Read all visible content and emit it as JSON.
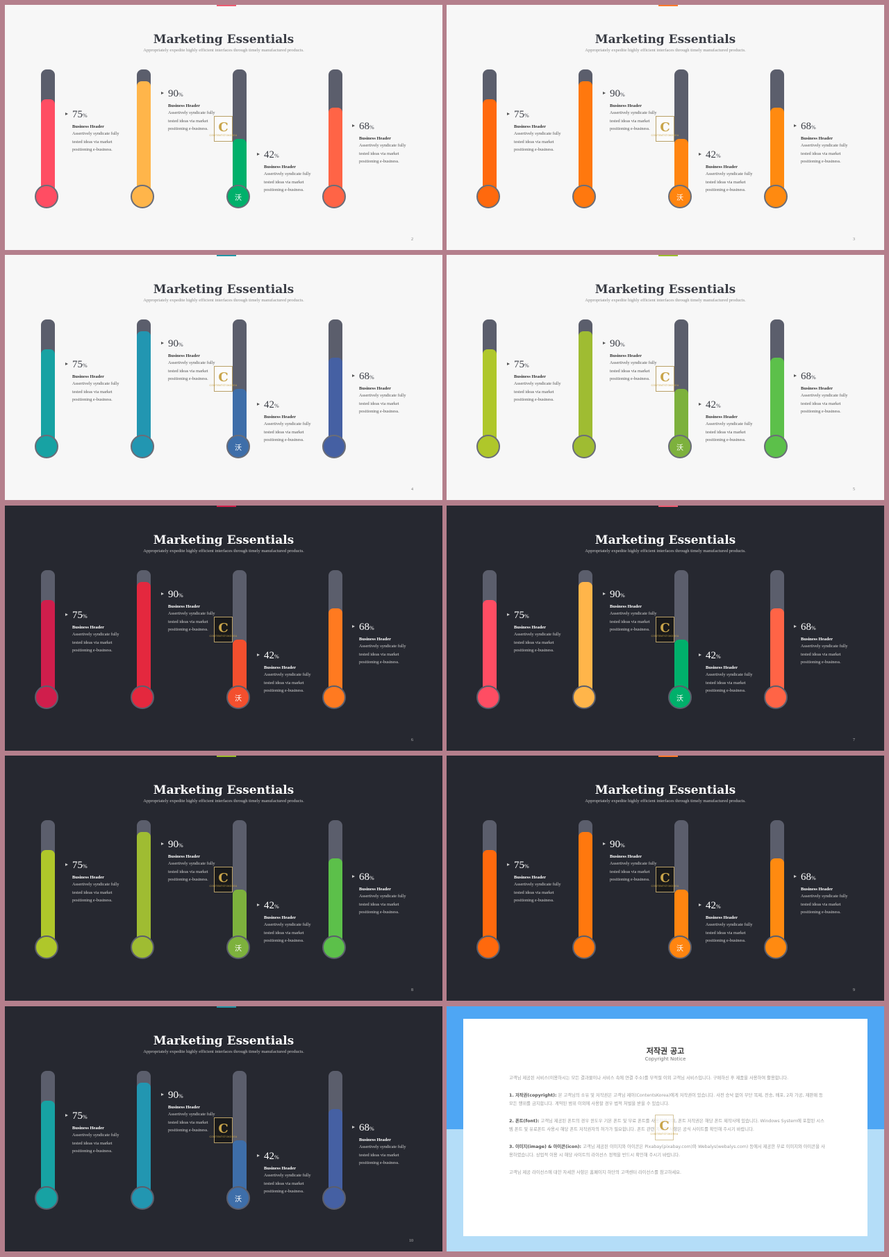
{
  "slides": [
    {
      "page": "2",
      "theme": "light",
      "accent": "#ee5a6f",
      "colors": [
        "#ff4d63",
        "#ffb54a",
        "#00b06b",
        "#ff6446"
      ]
    },
    {
      "page": "3",
      "theme": "light",
      "accent": "#ff7a2a",
      "colors": [
        "#ff690d",
        "#ff780e",
        "#ff8510",
        "#ff8a10"
      ]
    },
    {
      "page": "4",
      "theme": "light",
      "accent": "#2196a6",
      "colors": [
        "#17a2a3",
        "#2296b1",
        "#3e6ea9",
        "#4560a3"
      ]
    },
    {
      "page": "5",
      "theme": "light",
      "accent": "#9bbd2b",
      "colors": [
        "#afc72a",
        "#9fbc32",
        "#7db13d",
        "#5cc04a"
      ]
    },
    {
      "page": "6",
      "theme": "dark",
      "accent": "#d0204a",
      "colors": [
        "#d01e4c",
        "#e4283e",
        "#f34f2e",
        "#ff7a20"
      ]
    },
    {
      "page": "7",
      "theme": "dark",
      "accent": "#ee5a6f",
      "colors": [
        "#ff4d63",
        "#ffb54a",
        "#00b06b",
        "#ff6446"
      ]
    },
    {
      "page": "8",
      "theme": "dark",
      "accent": "#9bbd2b",
      "colors": [
        "#afc72a",
        "#9fbc32",
        "#7db13d",
        "#5cc04a"
      ]
    },
    {
      "page": "9",
      "theme": "dark",
      "accent": "#ff7a2a",
      "colors": [
        "#ff690d",
        "#ff780e",
        "#ff8510",
        "#ff8a10"
      ]
    },
    {
      "page": "10",
      "theme": "dark",
      "accent": "#2196a6",
      "colors": [
        "#17a2a3",
        "#2296b1",
        "#3e6ea9",
        "#4560a3"
      ]
    }
  ],
  "slide_text": {
    "title": "Marketing Essentials",
    "subtitle": "Appropriately expedite highly efficient interfaces through timely manufactured products.",
    "bulb_glyph": "沃",
    "items": [
      {
        "value": 75,
        "num": "75",
        "unit": "%",
        "header": "Business Header",
        "desc": [
          "Assertively syndicate fully",
          "tested ideas via market",
          "positioning e-business."
        ]
      },
      {
        "value": 90,
        "num": "90",
        "unit": "%",
        "header": "Business Header",
        "desc": [
          "Assertively syndicate fully",
          "tested ideas via market",
          "positioning e-business."
        ]
      },
      {
        "value": 42,
        "num": "42",
        "unit": "%",
        "header": "Business Header",
        "desc": [
          "Assertively syndicate fully",
          "tested ideas via market",
          "positioning e-business."
        ]
      },
      {
        "value": 68,
        "num": "68",
        "unit": "%",
        "header": "Business Header",
        "desc": [
          "Assertively syndicate fully",
          "tested ideas via market",
          "positioning e-business."
        ]
      }
    ]
  },
  "watermark": {
    "letter": "C",
    "text": "CONTENTSTOKOREA"
  },
  "copyright": {
    "title": "저작권 공고",
    "subtitle": "Copyright Notice",
    "intro": "고객님 제공된 서비스(이용하시는 모든 결과물이나 서비스 속에 연결 주소)를 부적절 이외 고객님 서비스입니다. 구매하신 후 제품을 사용하여 활용합니다.",
    "sections": [
      {
        "head": "1. 저작권(copyright):",
        "text": "본 고객님의 소유 및 저작권은 고객님 제이(ContentsKorea)에게 저작권이 있습니다. 사전 승낙 없이 무단 복제, 전송, 배포, 2차 가공, 재판매 등 모든 행위를 금지합니다. 계약된 범위 이외에 사용할 경우 법적 처벌을 받을 수 있습니다."
      },
      {
        "head": "2. 폰트(font):",
        "text": "고객님 제공된 폰트의 경우 윈도우 기본 폰트 및 무료 폰트를 사용하였으며, 폰트 저작권은 해당 폰트 제작사에 있습니다. Windows System에 포함된 시스템 폰트 및 유료폰트 사용시 해당 폰트 저작권자의 허가가 필요합니다. 폰트 관련 자세한 사항은 공식 사이트를 확인해 주시기 바랍니다."
      },
      {
        "head": "3. 이미지(image) & 아이콘(icon):",
        "text": "고객님 제공된 이미지와 아이콘은 Pixabay(pixabay.com)와 Webalys(webalys.com) 등에서 제공한 무료 이미지와 아이콘을 사용하였습니다. 상업적 이용 시 해당 사이트의 라이선스 정책을 반드시 확인해 주시기 바랍니다."
      }
    ],
    "outro": "고객님 제공 라이선스에 대한 자세한 사항은 홈페이지 하단의 고객센터 라이선스를 참고하세요."
  }
}
